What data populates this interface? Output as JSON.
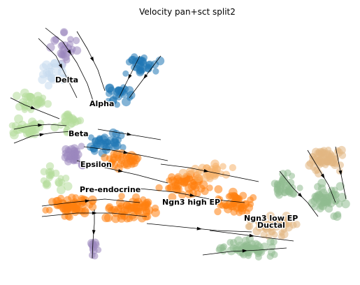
{
  "chart_data": {
    "type": "scatter",
    "title": "Velocity pan+sct split2",
    "xlabel": "",
    "ylabel": "",
    "grid": false,
    "clusters": [
      {
        "name": "Delta",
        "color": "#c6dbef"
      },
      {
        "name": "Alpha",
        "color": "#1f77b4"
      },
      {
        "name": "Beta",
        "color": "#b5dc9a"
      },
      {
        "name": "Epsilon",
        "color": "#9a86bd"
      },
      {
        "name": "Pre-endocrine",
        "color": "#ff7f0e"
      },
      {
        "name": "Ngn3 high EP",
        "color": "#f5b26b"
      },
      {
        "name": "Ngn3 low EP",
        "color": "#8fbc8f"
      },
      {
        "name": "Ductal",
        "color": "#e2b782"
      }
    ]
  }
}
